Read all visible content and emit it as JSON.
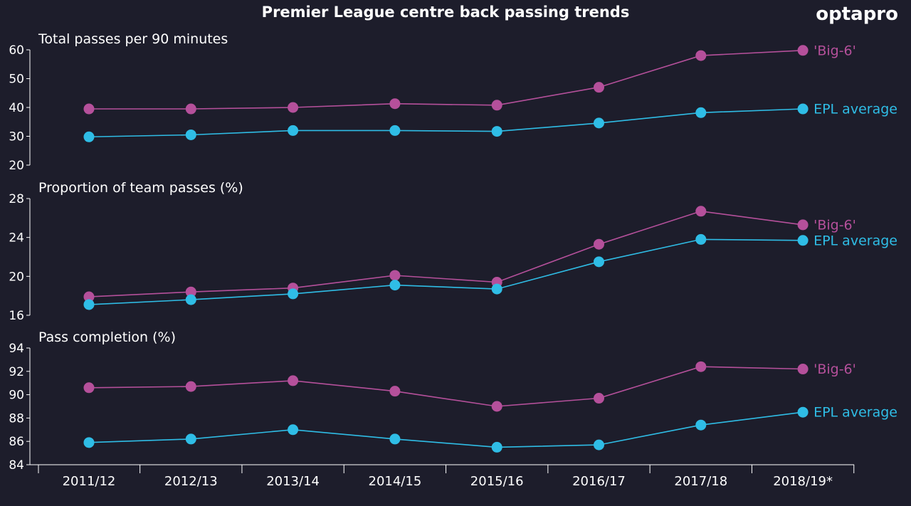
{
  "header": {
    "title": "Premier League centre back passing trends",
    "brand": "optapro"
  },
  "colors": {
    "background": "#1d1d2b",
    "big6": "#b5509b",
    "epl_average": "#2fbde6",
    "text": "#ffffff"
  },
  "chart_data": [
    {
      "type": "line",
      "title": "Total passes per 90 minutes",
      "categories": [
        "2011/12",
        "2012/13",
        "2013/14",
        "2014/15",
        "2015/16",
        "2016/17",
        "2017/18",
        "2018/19*"
      ],
      "ylim": [
        20,
        60
      ],
      "yticks": [
        "20",
        "30",
        "40",
        "50",
        "60"
      ],
      "series": [
        {
          "name": "'Big-6'",
          "values": [
            39.5,
            39.5,
            40,
            41.3,
            40.8,
            47,
            58,
            59.8
          ]
        },
        {
          "name": "EPL average",
          "values": [
            29.8,
            30.5,
            32,
            32,
            31.7,
            34.6,
            38.2,
            39.5
          ]
        }
      ],
      "grid": false,
      "legend": "right-end-labels"
    },
    {
      "type": "line",
      "title": "Proportion of team passes (%)",
      "categories": [
        "2011/12",
        "2012/13",
        "2013/14",
        "2014/15",
        "2015/16",
        "2016/17",
        "2017/18",
        "2018/19*"
      ],
      "ylim": [
        16,
        28
      ],
      "yticks": [
        "16",
        "20",
        "24",
        "28"
      ],
      "series": [
        {
          "name": "'Big-6'",
          "values": [
            17.9,
            18.4,
            18.8,
            20.1,
            19.4,
            23.3,
            26.7,
            25.3
          ]
        },
        {
          "name": "EPL average",
          "values": [
            17.1,
            17.6,
            18.2,
            19.1,
            18.7,
            21.5,
            23.8,
            23.7
          ]
        }
      ],
      "grid": false,
      "legend": "right-end-labels"
    },
    {
      "type": "line",
      "title": "Pass completion (%)",
      "categories": [
        "2011/12",
        "2012/13",
        "2013/14",
        "2014/15",
        "2015/16",
        "2016/17",
        "2017/18",
        "2018/19*"
      ],
      "ylim": [
        84,
        94
      ],
      "yticks": [
        "84",
        "86",
        "88",
        "90",
        "92",
        "94"
      ],
      "series": [
        {
          "name": "'Big-6'",
          "values": [
            90.6,
            90.7,
            91.2,
            90.3,
            89,
            89.7,
            92.4,
            92.2
          ]
        },
        {
          "name": "EPL average",
          "values": [
            85.9,
            86.2,
            87,
            86.2,
            85.5,
            85.7,
            87.4,
            88.5
          ]
        }
      ],
      "grid": false,
      "legend": "right-end-labels"
    }
  ]
}
